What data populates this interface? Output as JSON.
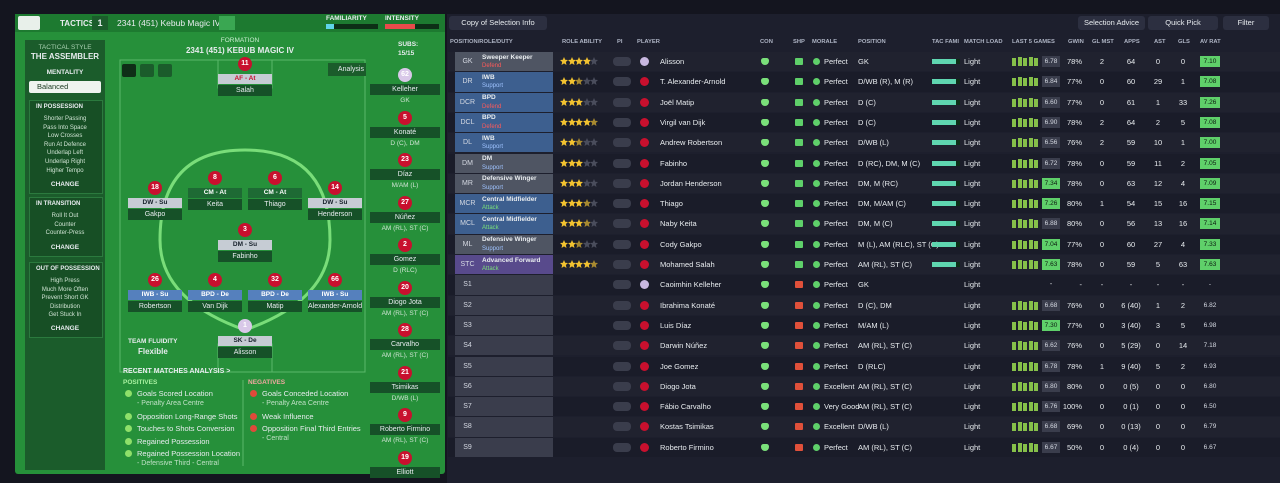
{
  "header": {
    "tab": "TACTICS",
    "slot": "1",
    "tactic": "2341 (451) Kebub Magic IV",
    "familiarity": "FAMILIARITY",
    "intensity": "INTENSITY"
  },
  "sidebar": {
    "style_label": "TACTICAL STYLE",
    "style": "THE ASSEMBLER",
    "mentality_label": "MENTALITY",
    "mentality": "Balanced",
    "sections": [
      {
        "title": "IN POSSESSION",
        "items": [
          "Shorter Passing",
          "Pass Into Space",
          "Low Crosses",
          "Run At Defence",
          "Underlap Left",
          "Underlap Right",
          "Higher Tempo"
        ],
        "button": "CHANGE"
      },
      {
        "title": "IN TRANSITION",
        "items": [
          "Roll It Out",
          "Counter",
          "Counter-Press"
        ],
        "button": "CHANGE"
      },
      {
        "title": "OUT OF POSSESSION",
        "items": [
          "High Press",
          "Much More Often",
          "Prevent Short GK",
          "Distribution",
          "Get Stuck In"
        ],
        "button": "CHANGE"
      }
    ]
  },
  "pitch": {
    "label": "FORMATION",
    "name": "2341 (451) KEBUB MAGIC IV",
    "analysis": "Analysis",
    "subs_label": "SUBS:",
    "subs_count": "15/15",
    "fluidity_label": "TEAM FLUIDITY",
    "fluidity": "Flexible",
    "players": [
      {
        "number": "11",
        "role": "AF - At",
        "name": "Salah"
      },
      {
        "number": "18",
        "role": "DW - Su",
        "name": "Gakpo"
      },
      {
        "number": "8",
        "role": "CM - At",
        "name": "Keita"
      },
      {
        "number": "6",
        "role": "CM - At",
        "name": "Thiago"
      },
      {
        "number": "14",
        "role": "DW - Su",
        "name": "Henderson"
      },
      {
        "number": "3",
        "role": "DM - Su",
        "name": "Fabinho"
      },
      {
        "number": "26",
        "role": "IWB - Su",
        "name": "Robertson"
      },
      {
        "number": "4",
        "role": "BPD - De",
        "name": "Van Dijk"
      },
      {
        "number": "32",
        "role": "BPD - De",
        "name": "Matip"
      },
      {
        "number": "66",
        "role": "IWB - Su",
        "name": "Alexander-Arnold"
      },
      {
        "number": "1",
        "role": "SK - De",
        "name": "Alisson"
      }
    ]
  },
  "subs": [
    {
      "number": "62",
      "name": "Kelleher",
      "position": "GK"
    },
    {
      "number": "5",
      "name": "Konaté",
      "position": "D (C), DM"
    },
    {
      "number": "23",
      "name": "Díaz",
      "position": "M/AM (L)"
    },
    {
      "number": "27",
      "name": "Núñez",
      "position": "AM (RL), ST (C)"
    },
    {
      "number": "2",
      "name": "Gomez",
      "position": "D (RLC)"
    },
    {
      "number": "20",
      "name": "Diogo Jota",
      "position": "AM (RL), ST (C)"
    },
    {
      "number": "28",
      "name": "Carvalho",
      "position": "AM (RL), ST (C)"
    },
    {
      "number": "21",
      "name": "Tsimikas",
      "position": "D/WB (L)"
    },
    {
      "number": "9",
      "name": "Roberto Firmino",
      "position": "AM (RL), ST (C)"
    },
    {
      "number": "19",
      "name": "Elliott"
    }
  ],
  "analysis": {
    "title": "RECENT MATCHES ANALYSIS >",
    "positives_label": "POSITIVES",
    "positives": [
      {
        "text": "Goals Scored Location",
        "detail": "- Penalty Area Centre"
      },
      {
        "text": "Opposition Long-Range Shots"
      },
      {
        "text": "Touches to Shots Conversion"
      },
      {
        "text": "Regained Possession"
      },
      {
        "text": "Regained Possession Location",
        "detail": "- Defensive Third - Central"
      }
    ],
    "negatives_label": "NEGATIVES",
    "negatives": [
      {
        "text": "Goals Conceded Location",
        "detail": "- Penalty Area Centre"
      },
      {
        "text": "Weak Influence"
      },
      {
        "text": "Opposition Final Third Entries",
        "detail": "- Central"
      }
    ]
  },
  "toolbar": {
    "copy": "Copy of Selection Info",
    "advice": "Selection Advice",
    "quick": "Quick Pick",
    "filter": "Filter"
  },
  "table": {
    "columns": [
      "POSITION/ROLE/DUTY",
      "ROLE ABILITY",
      "PI",
      "PLAYER",
      "CON",
      "SHP",
      "MORALE",
      "POSITION",
      "TAC FAMI",
      "MATCH LOAD",
      "LAST 5 GAMES",
      "GWIN",
      "GL MST",
      "APPS",
      "AST",
      "GLS",
      "AV RAT"
    ],
    "rows": [
      {
        "slot": "GK",
        "role": "Sweeper Keeper",
        "duty": "Defend",
        "stars": 4,
        "player": "Alisson",
        "morale": "Perfect",
        "position": "GK",
        "load": "Light",
        "form": "6.78",
        "gwin": "78%",
        "glmst": "2",
        "apps": "64",
        "ast": "0",
        "gls": "0",
        "avrat": "7.10"
      },
      {
        "slot": "DR",
        "role": "IWB",
        "duty": "Support",
        "stars": 2.5,
        "player": "T. Alexander-Arnold",
        "morale": "Perfect",
        "position": "D/WB (R), M (R)",
        "load": "Light",
        "form": "6.84",
        "gwin": "77%",
        "glmst": "0",
        "apps": "60",
        "ast": "29",
        "gls": "1",
        "avrat": "7.08"
      },
      {
        "slot": "DCR",
        "role": "BPD",
        "duty": "Defend",
        "stars": 3,
        "player": "Joël Matip",
        "morale": "Perfect",
        "position": "D (C)",
        "load": "Light",
        "form": "6.60",
        "gwin": "77%",
        "glmst": "0",
        "apps": "61",
        "ast": "1",
        "gls": "33",
        "avrat": "7.26"
      },
      {
        "slot": "DCL",
        "role": "BPD",
        "duty": "Defend",
        "stars": 4.5,
        "player": "Virgil van Dijk",
        "morale": "Perfect",
        "position": "D (C)",
        "load": "Light",
        "form": "6.90",
        "gwin": "78%",
        "glmst": "2",
        "apps": "64",
        "ast": "2",
        "gls": "5",
        "avrat": "7.08"
      },
      {
        "slot": "DL",
        "role": "IWB",
        "duty": "Support",
        "stars": 2.5,
        "player": "Andrew Robertson",
        "morale": "Perfect",
        "position": "D/WB (L)",
        "load": "Light",
        "form": "6.56",
        "gwin": "76%",
        "glmst": "2",
        "apps": "59",
        "ast": "10",
        "gls": "1",
        "avrat": "7.00"
      },
      {
        "slot": "DM",
        "role": "DM",
        "duty": "Support",
        "stars": 3,
        "player": "Fabinho",
        "morale": "Perfect",
        "position": "D (RC), DM, M (C)",
        "load": "Light",
        "form": "6.72",
        "gwin": "78%",
        "glmst": "0",
        "apps": "59",
        "ast": "11",
        "gls": "2",
        "avrat": "7.05"
      },
      {
        "slot": "MR",
        "role": "Defensive Winger",
        "duty": "Support",
        "stars": 3,
        "player": "Jordan Henderson",
        "morale": "Perfect",
        "position": "DM, M (RC)",
        "load": "Light",
        "form": "7.34",
        "gwin": "78%",
        "glmst": "0",
        "apps": "63",
        "ast": "12",
        "gls": "4",
        "avrat": "7.09"
      },
      {
        "slot": "MCR",
        "role": "Central Midfielder",
        "duty": "Attack",
        "stars": 3.5,
        "player": "Thiago",
        "morale": "Perfect",
        "position": "DM, M/AM (C)",
        "load": "Light",
        "form": "7.26",
        "gwin": "80%",
        "glmst": "1",
        "apps": "54",
        "ast": "15",
        "gls": "16",
        "avrat": "7.15"
      },
      {
        "slot": "MCL",
        "role": "Central Midfielder",
        "duty": "Attack",
        "stars": 3.5,
        "player": "Naby Keita",
        "morale": "Perfect",
        "position": "DM, M (C)",
        "load": "Light",
        "form": "6.88",
        "gwin": "80%",
        "glmst": "0",
        "apps": "56",
        "ast": "13",
        "gls": "16",
        "avrat": "7.14"
      },
      {
        "slot": "ML",
        "role": "Defensive Winger",
        "duty": "Support",
        "stars": 2.5,
        "player": "Cody Gakpo",
        "morale": "Perfect",
        "position": "M (L), AM (RLC), ST (C)",
        "load": "Light",
        "form": "7.04",
        "gwin": "77%",
        "glmst": "0",
        "apps": "60",
        "ast": "27",
        "gls": "4",
        "avrat": "7.33"
      },
      {
        "slot": "STC",
        "role": "Advanced Forward",
        "duty": "Attack",
        "stars": 4.5,
        "player": "Mohamed Salah",
        "morale": "Perfect",
        "position": "AM (RL), ST (C)",
        "load": "Light",
        "form": "7.63",
        "gwin": "78%",
        "glmst": "0",
        "apps": "59",
        "ast": "5",
        "gls": "63",
        "avrat": "7.63"
      },
      {
        "slot": "S1",
        "player": "Caoimhin Kelleher",
        "morale": "Perfect",
        "position": "GK",
        "load": "Light",
        "form": "-",
        "gwin": "-",
        "glmst": "-",
        "apps": "-",
        "ast": "-",
        "gls": "-",
        "avrat": "-"
      },
      {
        "slot": "S2",
        "player": "Ibrahima Konaté",
        "morale": "Perfect",
        "position": "D (C), DM",
        "load": "Light",
        "form": "6.68",
        "gwin": "76%",
        "glmst": "0",
        "apps": "6 (40)",
        "ast": "1",
        "gls": "2",
        "avrat": "6.82"
      },
      {
        "slot": "S3",
        "player": "Luis Díaz",
        "morale": "Perfect",
        "position": "M/AM (L)",
        "load": "Light",
        "form": "7.30",
        "gwin": "77%",
        "glmst": "0",
        "apps": "3 (40)",
        "ast": "3",
        "gls": "5",
        "avrat": "6.98"
      },
      {
        "slot": "S4",
        "player": "Darwin Núñez",
        "morale": "Perfect",
        "position": "AM (RL), ST (C)",
        "load": "Light",
        "form": "6.62",
        "gwin": "76%",
        "glmst": "0",
        "apps": "5 (29)",
        "ast": "0",
        "gls": "14",
        "avrat": "7.18"
      },
      {
        "slot": "S5",
        "player": "Joe Gomez",
        "morale": "Perfect",
        "position": "D (RLC)",
        "load": "Light",
        "form": "6.78",
        "gwin": "78%",
        "glmst": "1",
        "apps": "9 (40)",
        "ast": "5",
        "gls": "2",
        "avrat": "6.93"
      },
      {
        "slot": "S6",
        "player": "Diogo Jota",
        "morale": "Excellent",
        "position": "AM (RL), ST (C)",
        "load": "Light",
        "form": "6.80",
        "gwin": "80%",
        "glmst": "0",
        "apps": "0 (5)",
        "ast": "0",
        "gls": "0",
        "avrat": "6.80"
      },
      {
        "slot": "S7",
        "player": "Fábio Carvalho",
        "morale": "Very Good",
        "position": "AM (RL), ST (C)",
        "load": "Light",
        "form": "6.76",
        "gwin": "100%",
        "glmst": "0",
        "apps": "0 (1)",
        "ast": "0",
        "gls": "0",
        "avrat": "6.50"
      },
      {
        "slot": "S8",
        "player": "Kostas Tsimikas",
        "morale": "Excellent",
        "position": "D/WB (L)",
        "load": "Light",
        "form": "6.68",
        "gwin": "69%",
        "glmst": "0",
        "apps": "0 (13)",
        "ast": "0",
        "gls": "0",
        "avrat": "6.79"
      },
      {
        "slot": "S9",
        "player": "Roberto Firmino",
        "morale": "Perfect",
        "position": "AM (RL), ST (C)",
        "load": "Light",
        "form": "6.67",
        "gwin": "50%",
        "glmst": "0",
        "apps": "0 (4)",
        "ast": "0",
        "gls": "0",
        "avrat": "6.67"
      }
    ]
  }
}
